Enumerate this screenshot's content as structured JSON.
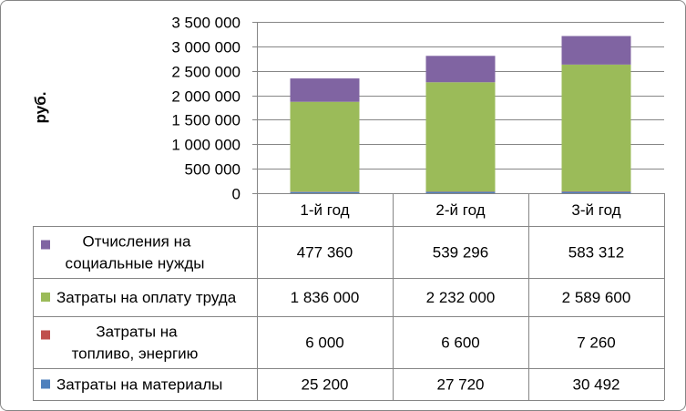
{
  "chart_data": {
    "type": "bar",
    "stacked": true,
    "ylabel": "руб.",
    "ylim": [
      0,
      3500000
    ],
    "yticks": [
      "0",
      "500 000",
      "1 000 000",
      "1 500 000",
      "2 000 000",
      "2 500 000",
      "3 000 000",
      "3 500 000"
    ],
    "yticks_values": [
      0,
      500000,
      1000000,
      1500000,
      2000000,
      2500000,
      3000000,
      3500000
    ],
    "grid": true,
    "legend": "data-table",
    "categories": [
      "1-й год",
      "2-й год",
      "3-й год"
    ],
    "series": [
      {
        "name_lines": [
          "Затраты на материалы"
        ],
        "color": "#4F81BD",
        "values": [
          25200,
          27720,
          30492
        ],
        "labels": [
          "25 200",
          "27 720",
          "30 492"
        ]
      },
      {
        "name_lines": [
          "Затраты на",
          "топливо, энергию"
        ],
        "color": "#C0504D",
        "values": [
          6000,
          6600,
          7260
        ],
        "labels": [
          "6 000",
          "6 600",
          "7 260"
        ]
      },
      {
        "name_lines": [
          "Затраты на оплату труда"
        ],
        "color": "#9BBB59",
        "values": [
          1836000,
          2232000,
          2589600
        ],
        "labels": [
          "1 836 000",
          "2 232 000",
          "2 589 600"
        ]
      },
      {
        "name_lines": [
          "Отчисления на",
          "социальные нужды"
        ],
        "color": "#8064A2",
        "values": [
          477360,
          539296,
          583312
        ],
        "labels": [
          "477 360",
          "539 296",
          "583 312"
        ]
      }
    ]
  }
}
